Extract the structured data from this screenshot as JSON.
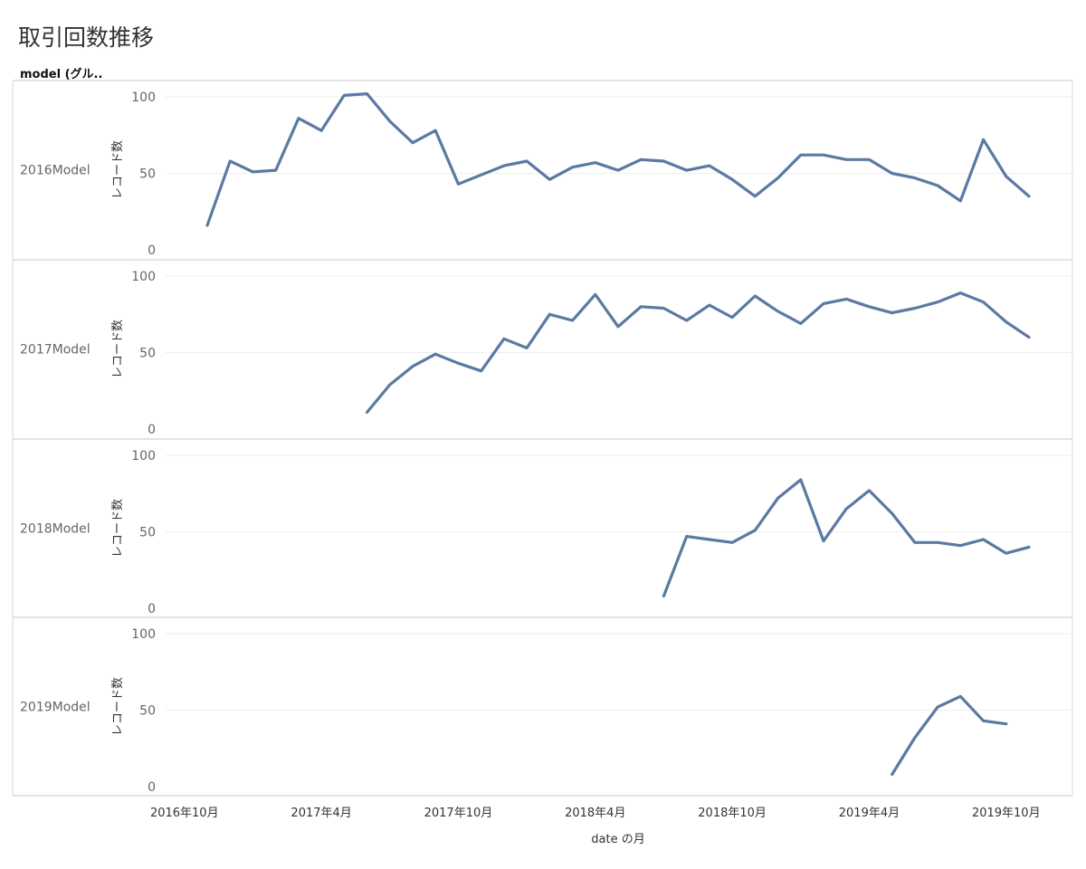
{
  "title": "取引回数推移",
  "header_label": "model (グル..",
  "chart_data": {
    "type": "line",
    "color": "#5b79a3",
    "ylabel": "レコード数",
    "xlabel": "date の月",
    "ylim": [
      0,
      100
    ],
    "yticks": [
      0,
      50,
      100
    ],
    "x_start": "2016-11",
    "x_end": "2019-11",
    "xtick_labels": [
      {
        "month": "2016-10",
        "label": "2016年10月"
      },
      {
        "month": "2017-04",
        "label": "2017年4月"
      },
      {
        "month": "2017-10",
        "label": "2017年10月"
      },
      {
        "month": "2018-04",
        "label": "2018年4月"
      },
      {
        "month": "2018-10",
        "label": "2018年10月"
      },
      {
        "month": "2019-04",
        "label": "2019年4月"
      },
      {
        "month": "2019-10",
        "label": "2019年10月"
      }
    ],
    "series": [
      {
        "name": "2016Model",
        "start": "2016-11",
        "values": [
          16,
          58,
          51,
          52,
          86,
          78,
          101,
          102,
          84,
          70,
          78,
          43,
          49,
          55,
          58,
          46,
          54,
          57,
          52,
          59,
          58,
          52,
          55,
          46,
          35,
          47,
          62,
          62,
          59,
          59,
          50,
          47,
          42,
          32,
          72,
          48,
          35
        ]
      },
      {
        "name": "2017Model",
        "start": "2017-06",
        "values": [
          11,
          29,
          41,
          49,
          43,
          38,
          59,
          53,
          75,
          71,
          88,
          67,
          80,
          79,
          71,
          81,
          73,
          87,
          77,
          69,
          82,
          85,
          80,
          76,
          79,
          83,
          89,
          83,
          70,
          60
        ]
      },
      {
        "name": "2018Model",
        "start": "2018-07",
        "values": [
          8,
          47,
          45,
          43,
          51,
          72,
          84,
          44,
          65,
          77,
          62,
          43,
          43,
          41,
          45,
          36,
          40
        ]
      },
      {
        "name": "2019Model",
        "start": "2019-05",
        "values": [
          8,
          32,
          52,
          59,
          43,
          41
        ]
      }
    ]
  }
}
